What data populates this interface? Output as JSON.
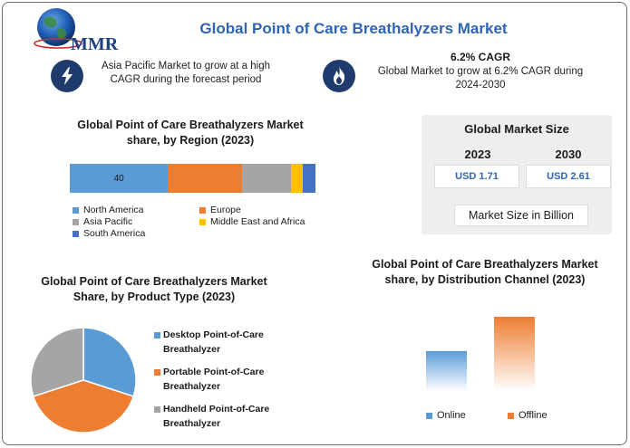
{
  "header": {
    "brand": "MMR",
    "title": "Global Point of Care Breathalyzers Market"
  },
  "highlights": [
    {
      "icon": "lightning-icon",
      "text": "Asia Pacific Market to grow at a high CAGR during the forecast period"
    },
    {
      "icon": "flame-icon",
      "heading": "6.2% CAGR",
      "text": "Global Market to grow at 6.2% CAGR during 2024-2030"
    }
  ],
  "market_size": {
    "title": "Global Market Size",
    "years": [
      "2023",
      "2030"
    ],
    "values": [
      "USD 1.71",
      "USD 2.61"
    ],
    "unit_note": "Market Size in Billion"
  },
  "colors": {
    "blue": "#5b9bd5",
    "orange": "#ed7d31",
    "gray": "#a5a5a5",
    "yellow": "#ffc000",
    "darkblue": "#4472c4",
    "title": "#2f64b4",
    "icon_bg": "#1f3b6e"
  },
  "chart_data": [
    {
      "type": "bar",
      "orientation": "horizontal-stacked",
      "title": "Global Point of Care Breathalyzers Market share, by Region (2023)",
      "categories": [
        "North America",
        "Europe",
        "Asia Pacific",
        "Middle East and Africa",
        "South America"
      ],
      "values": [
        40,
        30,
        20,
        5,
        5
      ],
      "data_labels": [
        "40",
        "",
        "",
        "",
        ""
      ],
      "colors": [
        "#5b9bd5",
        "#ed7d31",
        "#a5a5a5",
        "#ffc000",
        "#4472c4"
      ],
      "legend_position": "bottom"
    },
    {
      "type": "pie",
      "title": "Global Point of Care Breathalyzers Market Share, by Product Type (2023)",
      "categories": [
        "Desktop Point-of-Care Breathalyzer",
        "Portable Point-of-Care Breathalyzer",
        "Handheld Point-of-Care Breathalyzer"
      ],
      "values": [
        30,
        40,
        30
      ],
      "colors": [
        "#5b9bd5",
        "#ed7d31",
        "#a5a5a5"
      ],
      "legend_position": "right"
    },
    {
      "type": "bar",
      "title": "Global Point of Care Breathalyzers Market share, by Distribution Channel (2023)",
      "categories": [
        "Online",
        "Offline"
      ],
      "values": [
        35,
        65
      ],
      "colors": [
        "#5b9bd5",
        "#ed7d31"
      ],
      "legend_position": "bottom"
    }
  ]
}
